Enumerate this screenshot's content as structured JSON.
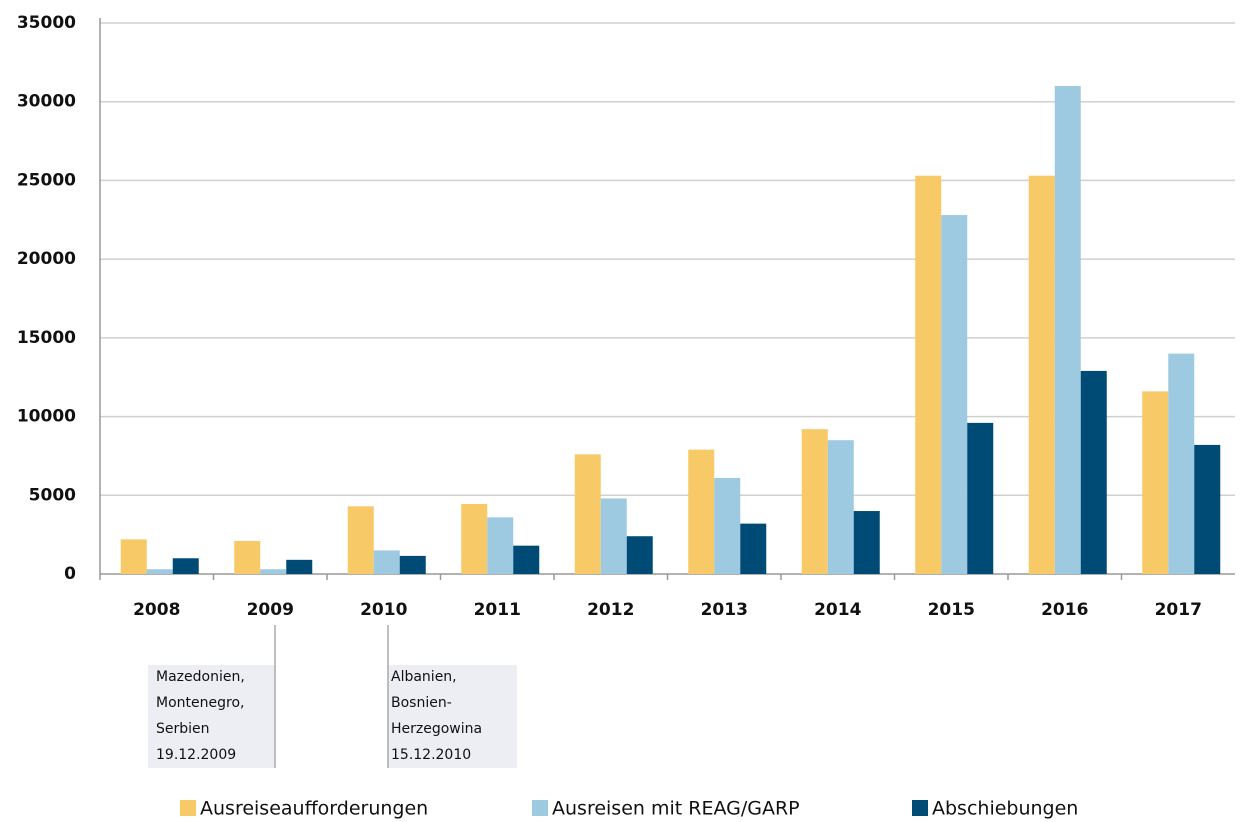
{
  "chart_data": {
    "type": "bar",
    "categories": [
      "2008",
      "2009",
      "2010",
      "2011",
      "2012",
      "2013",
      "2014",
      "2015",
      "2016",
      "2017"
    ],
    "series": [
      {
        "name": "Ausreiseaufforderungen",
        "color": "#f7c967",
        "values": [
          2200,
          2100,
          4300,
          4450,
          7600,
          7900,
          9200,
          25300,
          25300,
          11600
        ]
      },
      {
        "name": "Ausreisen mit REAG/GARP",
        "color": "#9ecae1",
        "values": [
          300,
          300,
          1500,
          3600,
          4800,
          6100,
          8500,
          22800,
          31000,
          14000
        ]
      },
      {
        "name": "Abschiebungen",
        "color": "#004b76",
        "values": [
          1000,
          900,
          1150,
          1800,
          2400,
          3200,
          4000,
          9600,
          12900,
          8200
        ]
      }
    ],
    "ylim": [
      0,
      35000
    ],
    "yticks": [
      0,
      5000,
      10000,
      15000,
      20000,
      25000,
      30000,
      35000
    ],
    "grid": true,
    "annotations": [
      {
        "lines": [
          "Mazedonien,",
          "Montenegro,",
          "Serbien",
          "19.12.2009"
        ]
      },
      {
        "lines": [
          "Albanien,",
          "Bosnien-",
          "Herzegowina",
          "15.12.2010"
        ]
      }
    ]
  }
}
